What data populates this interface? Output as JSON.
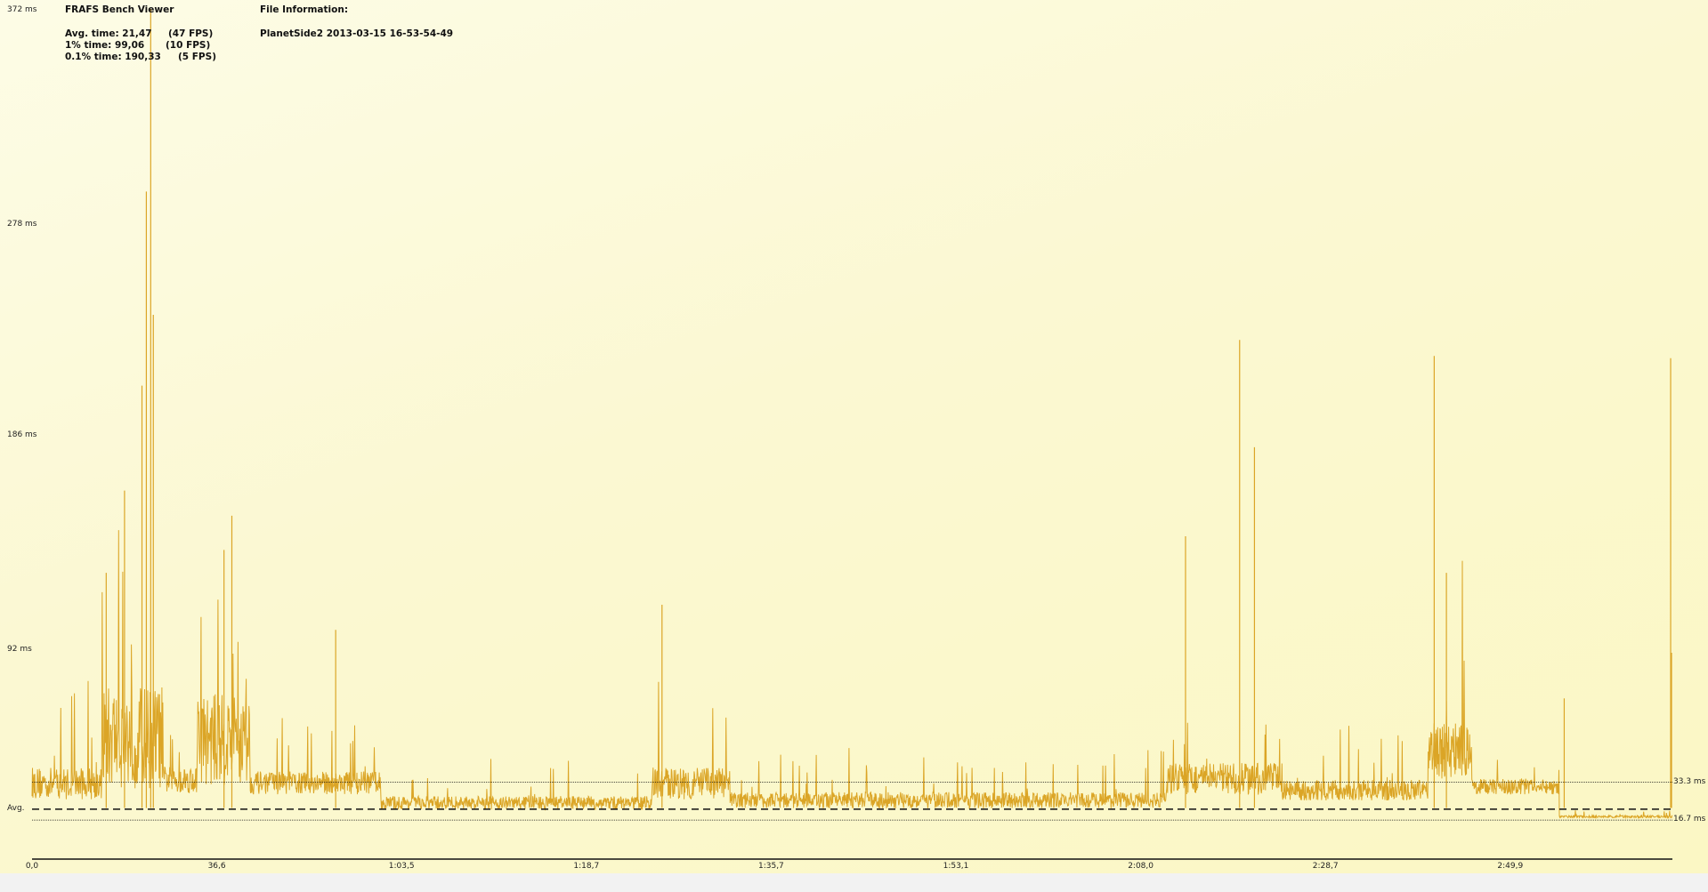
{
  "app_title": "FRAFS Bench Viewer",
  "stats": [
    {
      "label": "Avg. time: 21,47",
      "fps": "(47 FPS)"
    },
    {
      "label": "1% time: 99,06",
      "fps": "(10 FPS)"
    },
    {
      "label": "0.1% time: 190,33",
      "fps": "(5 FPS)"
    }
  ],
  "file_info": {
    "title": "File Information:",
    "name": "PlanetSide2 2013-03-15 16-53-54-49"
  },
  "chart_data": {
    "type": "line",
    "color": "#dba526",
    "ylim": [
      0,
      372
    ],
    "xlim_seconds": [
      0,
      188
    ],
    "y_tick_labels": [
      "372 ms",
      "278 ms",
      "186 ms",
      "92 ms"
    ],
    "y_ticks": [
      372,
      278,
      186,
      92
    ],
    "x_tick_labels": [
      "0,0",
      "36,6",
      "1:03,5",
      "1:18,7",
      "1:35,7",
      "1:53,1",
      "2:08,0",
      "2:28,7",
      "2:49,9"
    ],
    "reference_lines": [
      {
        "label": "33.3 ms",
        "value": 33.3,
        "style": "dotted"
      },
      {
        "label": "16.7 ms",
        "value": 16.7,
        "style": "dotted"
      },
      {
        "label": "Avg.",
        "value": 21.47,
        "style": "dashed"
      }
    ],
    "baseline_segments": [
      [
        0,
        8,
        16,
        14
      ],
      [
        8,
        15,
        30,
        45
      ],
      [
        15,
        19,
        18,
        12
      ],
      [
        19,
        25,
        30,
        40
      ],
      [
        25,
        40,
        17,
        10
      ],
      [
        40,
        71,
        9,
        6
      ],
      [
        71,
        80,
        16,
        14
      ],
      [
        80,
        130,
        10,
        7
      ],
      [
        130,
        143,
        18,
        14
      ],
      [
        143,
        160,
        14,
        9
      ],
      [
        160,
        165,
        28,
        25
      ],
      [
        165,
        175,
        16,
        7
      ],
      [
        175,
        188,
        4,
        1
      ]
    ],
    "spikes": [
      [
        13.6,
        372
      ],
      [
        13.1,
        292
      ],
      [
        12.6,
        207
      ],
      [
        13.9,
        238
      ],
      [
        10.6,
        161
      ],
      [
        8.5,
        125
      ],
      [
        22.0,
        135
      ],
      [
        22.9,
        150
      ],
      [
        34.8,
        100
      ],
      [
        72.2,
        111
      ],
      [
        132.2,
        141
      ],
      [
        138.4,
        227
      ],
      [
        140.1,
        180
      ],
      [
        160.7,
        220
      ],
      [
        162.1,
        125
      ],
      [
        175.6,
        70
      ],
      [
        187.8,
        219
      ],
      [
        187.9,
        90
      ]
    ]
  }
}
